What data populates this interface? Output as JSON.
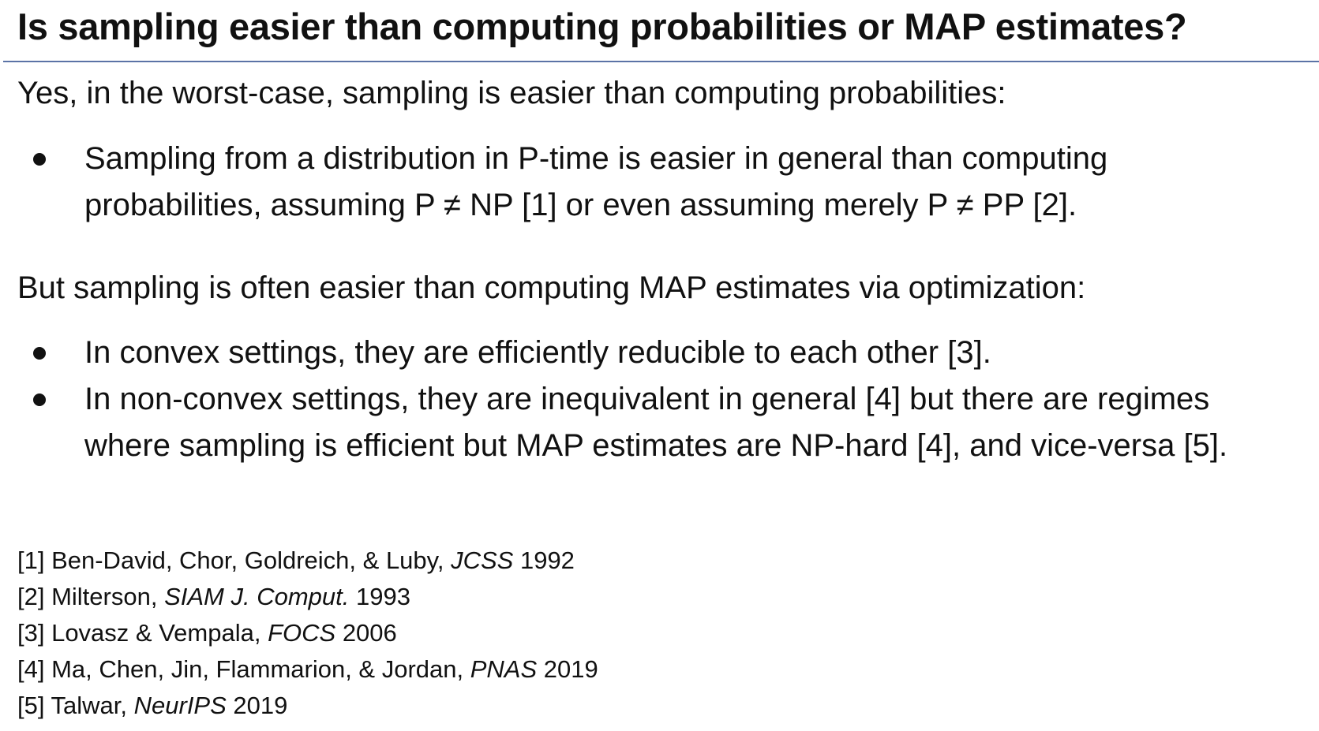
{
  "title": "Is sampling easier than computing probabilities or MAP estimates?",
  "section1": {
    "intro": "Yes, in the worst-case, sampling is easier than computing probabilities:",
    "bullets": [
      {
        "line1": "Sampling from a distribution in P-time is easier in general than computing",
        "line2": "probabilities, assuming P ≠ NP [1] or even assuming merely P ≠ PP [2]."
      }
    ]
  },
  "section2": {
    "intro": "But sampling is often easier than computing MAP estimates via optimization:",
    "bullets": [
      {
        "line1": "In convex settings, they are efficiently reducible to each other [3]."
      },
      {
        "line1": "In non-convex settings, they are inequivalent in general [4] but there are regimes",
        "line2": "where sampling is efficient but MAP estimates are NP-hard [4], and vice-versa [5]."
      }
    ]
  },
  "references": [
    {
      "prefix": "[1] Ben-David, Chor, Goldreich, & Luby, ",
      "venue": "JCSS",
      "year": " 1992"
    },
    {
      "prefix": "[2] Milterson, ",
      "venue": "SIAM J. Comput.",
      "year": " 1993"
    },
    {
      "prefix": "[3] Lovasz & Vempala, ",
      "venue": "FOCS",
      "year": " 2006"
    },
    {
      "prefix": "[4] Ma, Chen, Jin, Flammarion, & Jordan, ",
      "venue": "PNAS",
      "year": " 2019"
    },
    {
      "prefix": "[5] Talwar, ",
      "venue": "NeurIPS",
      "year": " 2019"
    }
  ],
  "colors": {
    "title_rule": "#5b73a6",
    "text": "#111111"
  }
}
